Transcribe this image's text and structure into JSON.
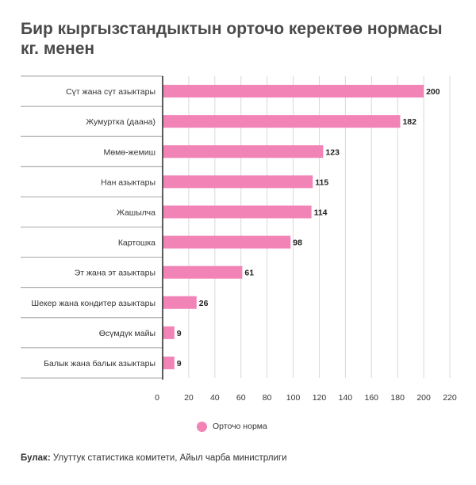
{
  "chart_data": {
    "type": "bar",
    "orientation": "horizontal",
    "title": "Бир кыргызстандыктын орточо керектөө нормасы кг. менен",
    "categories": [
      "Сүт жана сүт азыктары",
      "Жумуртка (даана)",
      "Мөмө-жемиш",
      "Нан азыктары",
      "Жашылча",
      "Картошка",
      "Эт жана эт азыктары",
      "Шекер жана кондитер азыктары",
      "Өсүмдүк майы",
      "Балык жана балык азыктары"
    ],
    "series": [
      {
        "name": "Орточо норма",
        "values": [
          200,
          182,
          123,
          115,
          114,
          98,
          61,
          26,
          9,
          9
        ],
        "color": "#f283b6"
      }
    ],
    "xlim": [
      0,
      220
    ],
    "xticks": [
      "0",
      "20",
      "40",
      "60",
      "80",
      "100",
      "120",
      "140",
      "160",
      "180",
      "200",
      "220"
    ],
    "grid": true,
    "legend_position": "bottom"
  },
  "source": {
    "label": "Булак:",
    "text": "Улуттук статистика комитети, Айыл чарба министрлиги"
  }
}
